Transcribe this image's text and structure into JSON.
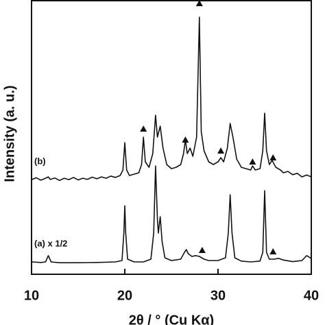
{
  "chart_data": {
    "type": "line",
    "xlabel": "2θ / ° (Cu Kα)",
    "ylabel": "Intensity (a. u.)",
    "xlim": [
      10,
      40
    ],
    "xticks": [
      10,
      20,
      30,
      40
    ],
    "ylim": [
      0,
      100
    ],
    "series": [
      {
        "name": "(a) x 1/2",
        "color": "#111111",
        "x": [
          10,
          11,
          11.5,
          11.8,
          12.1,
          13,
          15,
          17,
          19,
          19.7,
          19.9,
          20.0,
          20.1,
          20.3,
          21,
          22,
          22.8,
          23.1,
          23.3,
          23.5,
          23.6,
          23.8,
          24.0,
          24.3,
          25,
          26,
          26.4,
          26.6,
          26.8,
          27.2,
          27.6,
          28.0,
          28.5,
          29,
          30,
          30.8,
          31.1,
          31.3,
          31.5,
          31.8,
          32.5,
          33.5,
          34.5,
          34.8,
          35.0,
          35.2,
          35.5,
          36,
          36.5,
          37,
          38,
          39,
          39.5,
          40
        ],
        "values": [
          4.5,
          4.3,
          4.5,
          6.8,
          4.5,
          4.2,
          4.2,
          4.3,
          4.5,
          5,
          15,
          25,
          15,
          5.5,
          4.5,
          4.5,
          5.5,
          15,
          39.5,
          20,
          15,
          21,
          12,
          6,
          5,
          5.5,
          8,
          9,
          7.5,
          6.5,
          6.8,
          6.5,
          5.5,
          5,
          5,
          6,
          15,
          29,
          15,
          6,
          4.8,
          4.5,
          4.8,
          8,
          30.5,
          8,
          5.5,
          5.5,
          5.8,
          5.2,
          4.6,
          5,
          6.8,
          5.8
        ]
      },
      {
        "name": "(b)",
        "color": "#111111",
        "x": [
          10,
          10.5,
          11,
          11.5,
          11.8,
          12,
          12.5,
          13,
          13.5,
          14,
          14.5,
          15,
          15.5,
          16,
          16.5,
          17,
          17.5,
          18,
          18.5,
          19,
          19.5,
          19.8,
          20.0,
          20.2,
          20.5,
          21,
          21.5,
          21.8,
          22.0,
          22.2,
          22.6,
          23.0,
          23.3,
          23.5,
          23.8,
          24.1,
          24.5,
          25,
          25.5,
          26,
          26.3,
          26.5,
          26.7,
          27,
          27.3,
          27.7,
          28.0,
          28.2,
          28.5,
          29,
          29.5,
          30,
          30.3,
          30.6,
          31.0,
          31.3,
          31.6,
          32,
          32.5,
          33,
          33.5,
          33.7,
          34,
          34.5,
          34.8,
          35.0,
          35.2,
          35.5,
          35.8,
          36.2,
          36.7,
          37,
          37.5,
          38,
          38.5,
          39,
          39.5,
          40
        ],
        "values": [
          34.5,
          35.2,
          34.3,
          35,
          35.5,
          34.6,
          35.1,
          34.2,
          35,
          34.5,
          35.3,
          34.4,
          35,
          34.6,
          35.4,
          34.8,
          35.5,
          35,
          35.8,
          35.3,
          36,
          38,
          48,
          38,
          36,
          36.5,
          37,
          40,
          50,
          41,
          39,
          44,
          58,
          50,
          54,
          46,
          40,
          38.5,
          39,
          40,
          44,
          49,
          44,
          46,
          43,
          50,
          93.75,
          52,
          45,
          41,
          40,
          41,
          42.5,
          41,
          46,
          55,
          50,
          42,
          39,
          38.5,
          38,
          39.5,
          38,
          38.5,
          45,
          58.75,
          45,
          40,
          41.5,
          39,
          38,
          37,
          37.5,
          36.3,
          36.8,
          35.5,
          36.2,
          35.5
        ]
      }
    ],
    "markers": {
      "x": [
        22.0,
        26.5,
        28.0,
        30.3,
        33.7,
        35.9,
        28.3,
        35.9
      ],
      "y": [
        53,
        49,
        98.75,
        45,
        41,
        42.5,
        8.75,
        8.25
      ]
    }
  }
}
